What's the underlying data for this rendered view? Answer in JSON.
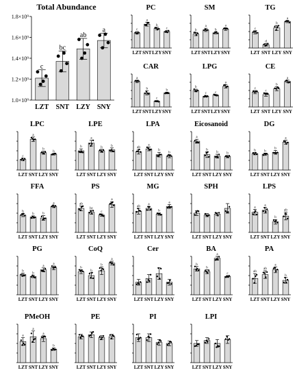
{
  "figure": {
    "bar_color": "#d9d9d9",
    "categories": [
      "LZT",
      "SNT",
      "LZY",
      "SNY"
    ]
  },
  "chart_data": [
    {
      "type": "bar",
      "title": "Total Abundance",
      "categories": [
        "LZT",
        "SNT",
        "LZY",
        "SNY"
      ],
      "values": [
        1210000000.0,
        1370000000.0,
        1490000000.0,
        1570000000.0
      ],
      "errors": [
        80000000.0,
        100000000.0,
        100000000.0,
        70000000.0
      ],
      "ylim": [
        1000000000.0,
        1800000000.0
      ],
      "yticks": [
        "1.0×10⁹",
        "1.2×10⁹",
        "1.4×10⁹",
        "1.6×10⁹",
        "1.8×10⁹"
      ],
      "letters": [
        "c",
        "bc",
        "ab",
        "a"
      ],
      "points": [
        [
          1.27,
          1.15,
          1.18,
          1.23
        ],
        [
          1.42,
          1.28,
          1.45,
          1.35
        ],
        [
          1.58,
          1.4,
          1.45,
          1.53
        ],
        [
          1.62,
          1.5,
          1.63,
          1.55
        ]
      ]
    },
    {
      "type": "bar",
      "title": "PC",
      "categories": [
        "LZT",
        "SNT",
        "LZY",
        "SNY"
      ],
      "values": [
        0.92,
        1.45,
        1.18,
        1.0
      ],
      "errors": [
        0.08,
        0.12,
        0.08,
        0.06
      ],
      "ylim": [
        0,
        2
      ],
      "letters": [
        "c",
        "a",
        "b",
        "c"
      ]
    },
    {
      "type": "bar",
      "title": "SM",
      "categories": [
        "LZT",
        "SNT",
        "LZY",
        "SNY"
      ],
      "values": [
        0.85,
        1.1,
        0.92,
        1.15
      ],
      "errors": [
        0.1,
        0.1,
        0.06,
        0.08
      ],
      "ylim": [
        0,
        2
      ],
      "letters": [
        "b",
        "a",
        "b",
        "a"
      ]
    },
    {
      "type": "bar",
      "title": "TG",
      "categories": [
        "LZT",
        "SNT",
        "LZY",
        "SNY"
      ],
      "values": [
        0.95,
        0.2,
        1.22,
        1.6
      ],
      "errors": [
        0.1,
        0.08,
        0.15,
        0.06
      ],
      "ylim": [
        0,
        2
      ],
      "letters": [
        "c",
        "d",
        "b",
        "a"
      ]
    },
    {
      "type": "bar",
      "title": "CAR",
      "categories": [
        "LZT",
        "SNT",
        "LZY",
        "SNY"
      ],
      "values": [
        1.55,
        0.85,
        0.35,
        0.85
      ],
      "errors": [
        0.08,
        0.12,
        0.04,
        0.05
      ],
      "ylim": [
        0,
        2
      ],
      "letters": [
        "a",
        "b",
        "c",
        "b"
      ]
    },
    {
      "type": "bar",
      "title": "LPG",
      "categories": [
        "LZT",
        "SNT",
        "LZY",
        "SNY"
      ],
      "values": [
        1.0,
        0.65,
        0.72,
        1.25
      ],
      "errors": [
        0.08,
        0.05,
        0.04,
        0.1
      ],
      "ylim": [
        0,
        2
      ],
      "letters": [
        "b",
        "c",
        "c",
        "a"
      ]
    },
    {
      "type": "bar",
      "title": "CE",
      "categories": [
        "LZT",
        "SNT",
        "LZY",
        "SNY"
      ],
      "values": [
        0.9,
        0.75,
        1.1,
        1.55
      ],
      "errors": [
        0.1,
        0.1,
        0.12,
        0.08
      ],
      "ylim": [
        0,
        2
      ],
      "letters": [
        "c",
        "c",
        "b",
        "a"
      ]
    },
    {
      "type": "bar",
      "title": "LPC",
      "categories": [
        "LZT",
        "SNT",
        "LZY",
        "SNY"
      ],
      "values": [
        0.55,
        1.6,
        0.9,
        0.82
      ],
      "errors": [
        0.06,
        0.12,
        0.08,
        0.04
      ],
      "ylim": [
        0,
        2
      ],
      "letters": [
        "c",
        "a",
        "b",
        "b"
      ]
    },
    {
      "type": "bar",
      "title": "LPE",
      "categories": [
        "LZT",
        "SNT",
        "LZY",
        "SNY"
      ],
      "values": [
        1.0,
        1.4,
        1.0,
        1.05
      ],
      "errors": [
        0.1,
        0.15,
        0.08,
        0.1
      ],
      "ylim": [
        0,
        2
      ],
      "letters": [
        "b",
        "a",
        "b",
        "b"
      ]
    },
    {
      "type": "bar",
      "title": "LPA",
      "categories": [
        "LZT",
        "SNT",
        "LZY",
        "SNY"
      ],
      "values": [
        0.95,
        1.1,
        0.8,
        0.72
      ],
      "errors": [
        0.12,
        0.1,
        0.12,
        0.08
      ],
      "ylim": [
        0,
        2
      ],
      "letters": [
        "ab",
        "a",
        "b",
        "b"
      ]
    },
    {
      "type": "bar",
      "title": "Eicosanoid",
      "categories": [
        "LZT",
        "SNT",
        "LZY",
        "SNY"
      ],
      "values": [
        1.5,
        0.8,
        0.72,
        0.7
      ],
      "errors": [
        0.1,
        0.15,
        0.1,
        0.06
      ],
      "ylim": [
        0,
        2
      ],
      "letters": [
        "a",
        "b",
        "b",
        "b"
      ]
    },
    {
      "type": "bar",
      "title": "DG",
      "categories": [
        "LZT",
        "SNT",
        "LZY",
        "SNY"
      ],
      "values": [
        0.85,
        0.82,
        0.92,
        1.45
      ],
      "errors": [
        0.06,
        0.06,
        0.1,
        0.1
      ],
      "ylim": [
        0,
        2
      ],
      "letters": [
        "b",
        "b",
        "b",
        "a"
      ]
    },
    {
      "type": "bar",
      "title": "FFA",
      "categories": [
        "LZT",
        "SNT",
        "LZY",
        "SNY"
      ],
      "values": [
        0.9,
        0.8,
        0.75,
        1.35
      ],
      "errors": [
        0.08,
        0.06,
        0.12,
        0.06
      ],
      "ylim": [
        0,
        2
      ],
      "letters": [
        "b",
        "b",
        "b",
        "a"
      ]
    },
    {
      "type": "bar",
      "title": "PS",
      "categories": [
        "LZT",
        "SNT",
        "LZY",
        "SNY"
      ],
      "values": [
        1.25,
        1.05,
        0.9,
        1.45
      ],
      "errors": [
        0.12,
        0.1,
        0.06,
        0.15
      ],
      "ylim": [
        0,
        2
      ],
      "letters": [
        "ab",
        "bc",
        "c",
        "a"
      ]
    },
    {
      "type": "bar",
      "title": "MG",
      "categories": [
        "LZT",
        "SNT",
        "LZY",
        "SNY"
      ],
      "values": [
        1.1,
        1.25,
        0.95,
        1.35
      ],
      "errors": [
        0.15,
        0.1,
        0.06,
        0.1
      ],
      "ylim": [
        0,
        2
      ],
      "letters": [
        "ab",
        "a",
        "b",
        "a"
      ]
    },
    {
      "type": "bar",
      "title": "SPH",
      "categories": [
        "LZT",
        "SNT",
        "LZY",
        "SNY"
      ],
      "values": [
        1.0,
        0.9,
        0.95,
        1.25
      ],
      "errors": [
        0.12,
        0.08,
        0.08,
        0.25
      ],
      "ylim": [
        0,
        2
      ],
      "letters": [
        "",
        "",
        "",
        ""
      ]
    },
    {
      "type": "bar",
      "title": "LPS",
      "categories": [
        "LZT",
        "SNT",
        "LZY",
        "SNY"
      ],
      "values": [
        1.05,
        1.15,
        0.55,
        0.85
      ],
      "errors": [
        0.15,
        0.15,
        0.12,
        0.2
      ],
      "ylim": [
        0,
        2
      ],
      "letters": [
        "a",
        "a",
        "b",
        "ab"
      ]
    },
    {
      "type": "bar",
      "title": "PG",
      "categories": [
        "LZT",
        "SNT",
        "LZY",
        "SNY"
      ],
      "values": [
        1.05,
        0.95,
        1.3,
        1.4
      ],
      "errors": [
        0.08,
        0.06,
        0.1,
        0.1
      ],
      "ylim": [
        0,
        2
      ],
      "letters": [
        "b",
        "b",
        "a",
        "a"
      ]
    },
    {
      "type": "bar",
      "title": "CoQ",
      "categories": [
        "LZT",
        "SNT",
        "LZY",
        "SNY"
      ],
      "values": [
        1.2,
        1.0,
        1.25,
        1.65
      ],
      "errors": [
        0.1,
        0.15,
        0.2,
        0.1
      ],
      "ylim": [
        0,
        2
      ],
      "letters": [
        "b",
        "b",
        "b",
        "a"
      ]
    },
    {
      "type": "bar",
      "title": "Cer",
      "categories": [
        "LZT",
        "SNT",
        "LZY",
        "SNY"
      ],
      "values": [
        0.65,
        0.85,
        1.1,
        0.65
      ],
      "errors": [
        0.15,
        0.2,
        0.3,
        0.15
      ],
      "ylim": [
        0,
        2
      ],
      "letters": [
        "",
        "",
        "",
        ""
      ]
    },
    {
      "type": "bar",
      "title": "BA",
      "categories": [
        "LZT",
        "SNT",
        "LZY",
        "SNY"
      ],
      "values": [
        1.35,
        1.2,
        1.9,
        0.95
      ],
      "errors": [
        0.12,
        0.1,
        0.1,
        0.05
      ],
      "ylim": [
        0,
        2
      ],
      "letters": [
        "b",
        "b",
        "a",
        "c"
      ]
    },
    {
      "type": "bar",
      "title": "PA",
      "categories": [
        "LZT",
        "SNT",
        "LZY",
        "SNY"
      ],
      "values": [
        0.85,
        1.05,
        1.3,
        0.75
      ],
      "errors": [
        0.25,
        0.2,
        0.15,
        0.15
      ],
      "ylim": [
        0,
        2
      ],
      "letters": [
        "ab",
        "ab",
        "a",
        "b"
      ]
    },
    {
      "type": "bar",
      "title": "PMeOH",
      "categories": [
        "LZT",
        "SNT",
        "LZY",
        "SNY"
      ],
      "values": [
        1.1,
        1.35,
        1.25,
        0.7
      ],
      "errors": [
        0.2,
        0.3,
        0.15,
        0.06
      ],
      "ylim": [
        0,
        2
      ],
      "letters": [
        "a",
        "a",
        "a",
        "b"
      ]
    },
    {
      "type": "bar",
      "title": "PE",
      "categories": [
        "LZT",
        "SNT",
        "LZY",
        "SNY"
      ],
      "values": [
        1.35,
        1.45,
        1.3,
        1.35
      ],
      "errors": [
        0.12,
        0.15,
        0.1,
        0.12
      ],
      "ylim": [
        0,
        2
      ],
      "letters": [
        "",
        "",
        "",
        ""
      ]
    },
    {
      "type": "bar",
      "title": "PI",
      "categories": [
        "LZT",
        "SNT",
        "LZY",
        "SNY"
      ],
      "values": [
        1.3,
        1.3,
        1.05,
        1.0
      ],
      "errors": [
        0.2,
        0.2,
        0.15,
        0.12
      ],
      "ylim": [
        0,
        2
      ],
      "letters": [
        "",
        "",
        "",
        ""
      ]
    },
    {
      "type": "bar",
      "title": "LPI",
      "categories": [
        "LZT",
        "SNT",
        "LZY",
        "SNY"
      ],
      "values": [
        1.0,
        1.15,
        1.0,
        1.2
      ],
      "errors": [
        0.15,
        0.15,
        0.2,
        0.2
      ],
      "ylim": [
        0,
        2
      ],
      "letters": [
        "",
        "",
        "",
        ""
      ]
    }
  ]
}
